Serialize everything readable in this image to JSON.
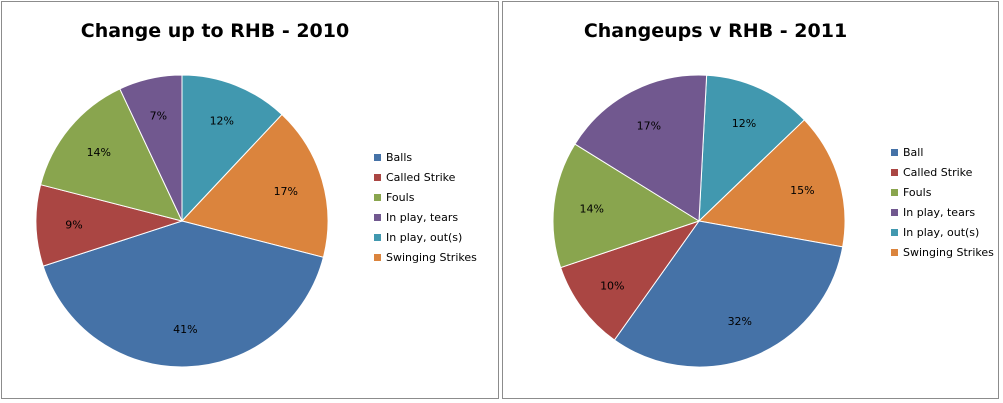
{
  "chart_data": [
    {
      "type": "pie",
      "title": "Change up to RHB - 2010",
      "categories": [
        "Balls",
        "Called Strike",
        "Fouls",
        "In play, tears",
        "In play, out(s)",
        "Swinging Strikes"
      ],
      "values": [
        41,
        9,
        14,
        7,
        12,
        17
      ],
      "data_labels": [
        "41%",
        "9%",
        "14%",
        "7%",
        "12%",
        "17%"
      ],
      "colors": [
        "#4572a7",
        "#aa4643",
        "#89a54e",
        "#71588f",
        "#4198af",
        "#db843d"
      ],
      "legend": "right"
    },
    {
      "type": "pie",
      "title": "Changeups v RHB - 2011",
      "categories": [
        "Ball",
        "Called Strike",
        "Fouls",
        "In play, tears",
        "In play, out(s)",
        "Swinging Strikes"
      ],
      "values": [
        32,
        10,
        14,
        17,
        12,
        15
      ],
      "data_labels": [
        "32%",
        "10%",
        "14%",
        "17%",
        "12%",
        "15%"
      ],
      "colors": [
        "#4572a7",
        "#aa4643",
        "#89a54e",
        "#71588f",
        "#4198af",
        "#db843d"
      ],
      "legend": "right"
    }
  ]
}
